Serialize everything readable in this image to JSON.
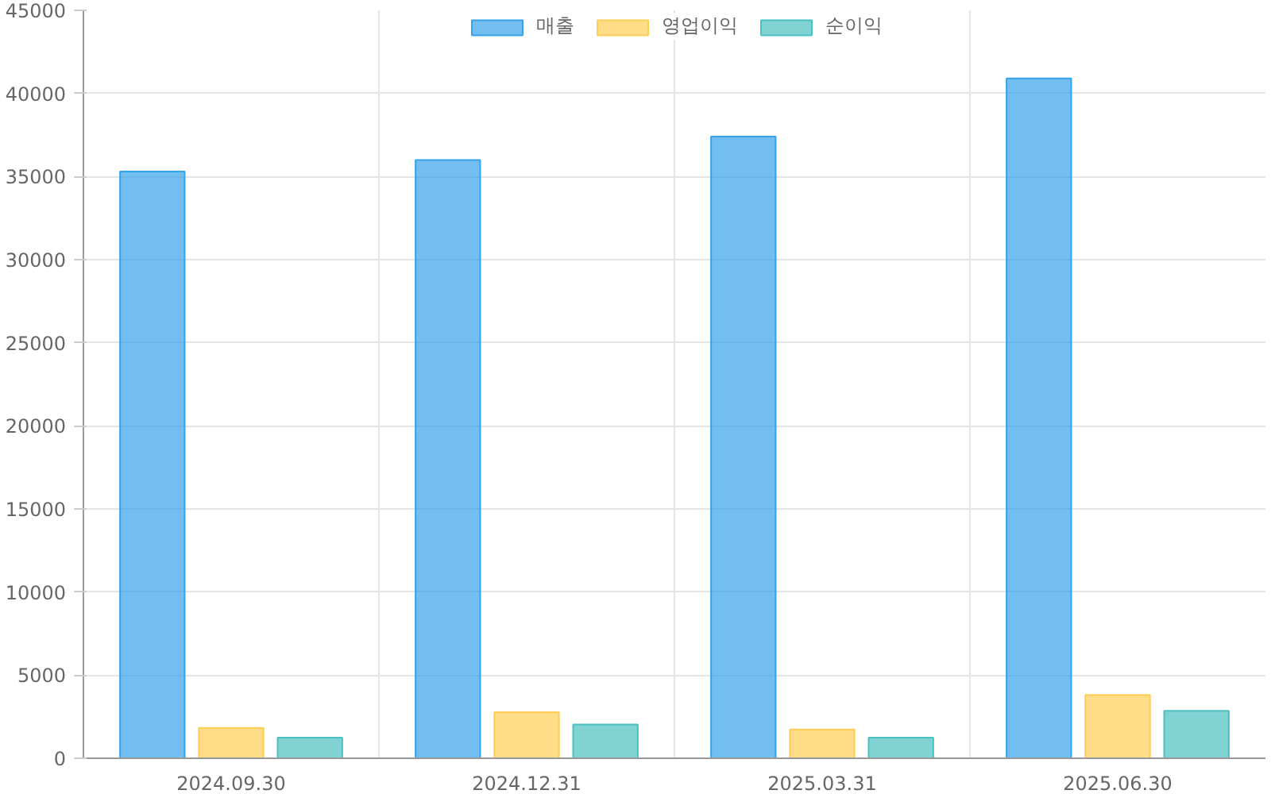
{
  "chart_data": {
    "type": "bar",
    "categories": [
      "2024.09.30",
      "2024.12.31",
      "2025.03.31",
      "2025.06.30"
    ],
    "series": [
      {
        "name": "매출",
        "color": "#36a2eb",
        "values": [
          35300,
          36000,
          37400,
          40900
        ]
      },
      {
        "name": "영업이익",
        "color": "#ffcd56",
        "values": [
          1830,
          2770,
          1730,
          3810
        ]
      },
      {
        "name": "순이익",
        "color": "#4bc0c0",
        "values": [
          1240,
          2030,
          1240,
          2860
        ]
      }
    ],
    "ylim": [
      0,
      45000
    ],
    "yticks": [
      0,
      5000,
      10000,
      15000,
      20000,
      25000,
      30000,
      35000,
      40000,
      45000
    ],
    "grid": true,
    "legend": "top"
  }
}
